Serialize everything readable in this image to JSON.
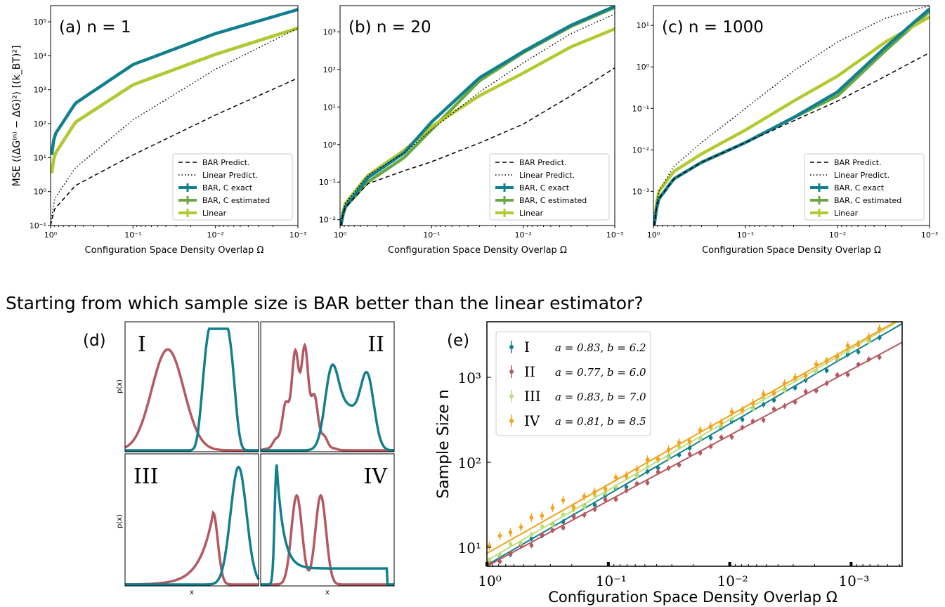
{
  "question": "Starting from which sample size is BAR better than the linear estimator?",
  "colors": {
    "bar_exact": "#127f8f",
    "bar_estimated": "#6aa842",
    "linear": "#b4c830",
    "dist_red": "#b5585f",
    "dist_teal": "#127f8f",
    "e_I": "#127f8f",
    "e_II": "#b5585f",
    "e_III": "#bcdf7a",
    "e_IV": "#f4a21a"
  },
  "top_ylabel": "MSE  ⟨(ΔG⁽ⁿ⁾ − ΔG)²⟩  [(k_BT)²]",
  "xlabel": "Configuration Space Density Overlap Ω",
  "legend_top": [
    "BAR Predict.",
    "Linear Predict.",
    "BAR, C exact",
    "BAR, C estimated",
    "Linear"
  ],
  "chart_data": [
    {
      "type": "line",
      "panel": "(a) n = 1",
      "x_scale": "log-reversed",
      "xlim": [
        1,
        0.001
      ],
      "ylim": [
        0.1,
        300000
      ],
      "y_scale": "log",
      "x_ticks": [
        "10⁰",
        "10⁻¹",
        "10⁻²",
        "10⁻³"
      ],
      "y_ticks": [
        "10⁻¹",
        "10⁰",
        "10¹",
        "10²",
        "10³",
        "10⁴",
        "10⁵"
      ],
      "legend_position": "lower right",
      "series": [
        {
          "name": "BAR Predict.",
          "style": "dashed",
          "x": [
            1,
            0.9,
            0.5,
            0.1,
            0.01,
            0.001
          ],
          "y": [
            0.1,
            0.3,
            1.5,
            12,
            180,
            2200
          ]
        },
        {
          "name": "Linear Predict.",
          "style": "dotted",
          "x": [
            1,
            0.9,
            0.5,
            0.1,
            0.01,
            0.001
          ],
          "y": [
            0.1,
            0.6,
            5,
            130,
            4000,
            65000
          ]
        },
        {
          "name": "BAR, C exact",
          "style": "solid",
          "x": [
            0.97,
            0.9,
            0.5,
            0.1,
            0.01,
            0.001
          ],
          "y": [
            12,
            45,
            400,
            5500,
            45000,
            230000
          ]
        },
        {
          "name": "BAR, C estimated",
          "style": "solid",
          "x": [
            0.97,
            0.9,
            0.5,
            0.1,
            0.01,
            0.001
          ],
          "y": [
            3.5,
            12,
            110,
            1400,
            11000,
            65000
          ]
        },
        {
          "name": "Linear",
          "style": "solid",
          "x": [
            0.97,
            0.9,
            0.5,
            0.1,
            0.01,
            0.001
          ],
          "y": [
            3.5,
            12,
            110,
            1400,
            11000,
            65000
          ]
        }
      ]
    },
    {
      "type": "line",
      "panel": "(b) n = 20",
      "x_scale": "log-reversed",
      "xlim": [
        1,
        0.001
      ],
      "ylim": [
        0.007,
        5000
      ],
      "y_scale": "log",
      "x_ticks": [
        "10⁰",
        "10⁻¹",
        "10⁻²",
        "10⁻³"
      ],
      "y_ticks": [
        "10⁻²",
        "10⁻¹",
        "10⁰",
        "10¹",
        "10²",
        "10³"
      ],
      "legend_position": "lower right",
      "series": [
        {
          "name": "BAR Predict.",
          "style": "dashed",
          "x": [
            0.98,
            0.9,
            0.5,
            0.2,
            0.1,
            0.03,
            0.01,
            0.003,
            0.001
          ],
          "y": [
            0.007,
            0.02,
            0.09,
            0.2,
            0.35,
            1.1,
            3.5,
            20,
            110
          ]
        },
        {
          "name": "Linear Predict.",
          "style": "dotted",
          "x": [
            0.98,
            0.9,
            0.5,
            0.2,
            0.1,
            0.03,
            0.01,
            0.003,
            0.001
          ],
          "y": [
            0.007,
            0.025,
            0.15,
            0.6,
            2.5,
            25,
            150,
            900,
            3000
          ]
        },
        {
          "name": "BAR, C exact",
          "style": "solid",
          "x": [
            0.98,
            0.9,
            0.5,
            0.2,
            0.1,
            0.03,
            0.01,
            0.003,
            0.001
          ],
          "y": [
            0.007,
            0.02,
            0.13,
            0.6,
            4,
            60,
            300,
            1500,
            4800
          ]
        },
        {
          "name": "BAR, C estimated",
          "style": "solid",
          "x": [
            0.98,
            0.9,
            0.5,
            0.2,
            0.1,
            0.03,
            0.01,
            0.003,
            0.001
          ],
          "y": [
            0.007,
            0.02,
            0.1,
            0.45,
            2.5,
            50,
            280,
            1400,
            4500
          ]
        },
        {
          "name": "Linear",
          "style": "solid",
          "x": [
            0.98,
            0.9,
            0.5,
            0.2,
            0.1,
            0.03,
            0.01,
            0.003,
            0.001
          ],
          "y": [
            0.007,
            0.025,
            0.15,
            0.7,
            3,
            20,
            80,
            400,
            1200
          ]
        }
      ]
    },
    {
      "type": "line",
      "panel": "(c) n = 1000",
      "x_scale": "log-reversed",
      "xlim": [
        1,
        0.001
      ],
      "ylim": [
        0.00015,
        30
      ],
      "y_scale": "log",
      "x_ticks": [
        "10⁰",
        "10⁻¹",
        "10⁻²",
        "10⁻³"
      ],
      "y_ticks": [
        "10⁻³",
        "10⁻²",
        "10⁻¹",
        "10⁰",
        "10¹"
      ],
      "legend_position": "lower right",
      "series": [
        {
          "name": "BAR Predict.",
          "style": "dashed",
          "x": [
            0.98,
            0.9,
            0.6,
            0.3,
            0.1,
            0.03,
            0.01,
            0.003,
            0.001
          ],
          "y": [
            0.00015,
            0.0006,
            0.002,
            0.005,
            0.015,
            0.05,
            0.15,
            0.6,
            2.2
          ]
        },
        {
          "name": "Linear Predict.",
          "style": "dotted",
          "x": [
            0.98,
            0.9,
            0.6,
            0.3,
            0.1,
            0.03,
            0.01,
            0.003,
            0.001
          ],
          "y": [
            0.00015,
            0.0009,
            0.004,
            0.015,
            0.1,
            0.8,
            4,
            15,
            30
          ]
        },
        {
          "name": "BAR, C exact",
          "style": "solid",
          "x": [
            0.98,
            0.9,
            0.6,
            0.3,
            0.1,
            0.03,
            0.01,
            0.003,
            0.001
          ],
          "y": [
            0.00015,
            0.0006,
            0.002,
            0.005,
            0.015,
            0.06,
            0.25,
            3,
            25
          ]
        },
        {
          "name": "BAR, C estimated",
          "style": "solid",
          "x": [
            0.98,
            0.9,
            0.6,
            0.3,
            0.1,
            0.03,
            0.01,
            0.003,
            0.001
          ],
          "y": [
            0.00015,
            0.0006,
            0.002,
            0.005,
            0.015,
            0.06,
            0.2,
            2.5,
            22
          ]
        },
        {
          "name": "Linear",
          "style": "solid",
          "x": [
            0.98,
            0.9,
            0.6,
            0.3,
            0.1,
            0.03,
            0.01,
            0.003,
            0.001
          ],
          "y": [
            0.00015,
            0.0009,
            0.003,
            0.008,
            0.03,
            0.15,
            0.6,
            4,
            16
          ]
        }
      ]
    },
    {
      "type": "line",
      "panel": "(d)",
      "xlabel": "x",
      "ylabel": "p(x)",
      "subpanels": [
        "I",
        "II",
        "III",
        "IV"
      ]
    },
    {
      "type": "scatter",
      "panel": "(e)",
      "xlabel": "Configuration Space Density Overlap Ω",
      "ylabel": "Sample Size n",
      "x_scale": "log-reversed",
      "xlim": [
        1,
        0.00038
      ],
      "y_scale": "log",
      "ylim": [
        6,
        4500
      ],
      "x_ticks": [
        "10⁰",
        "10⁻¹",
        "10⁻²",
        "10⁻³"
      ],
      "y_ticks": [
        "10¹",
        "10²",
        "10³"
      ],
      "legend_position": "upper left",
      "series": [
        {
          "name": "I",
          "label": "a = 0.83, b = 6.2",
          "a": 0.83,
          "b": 6.2
        },
        {
          "name": "II",
          "label": "a = 0.77, b = 6.0",
          "a": 0.77,
          "b": 6.0
        },
        {
          "name": "III",
          "label": "a = 0.83, b = 7.0",
          "a": 0.83,
          "b": 7.0
        },
        {
          "name": "IV",
          "label": "a = 0.81, b = 8.5",
          "a": 0.81,
          "b": 8.5
        }
      ]
    }
  ]
}
